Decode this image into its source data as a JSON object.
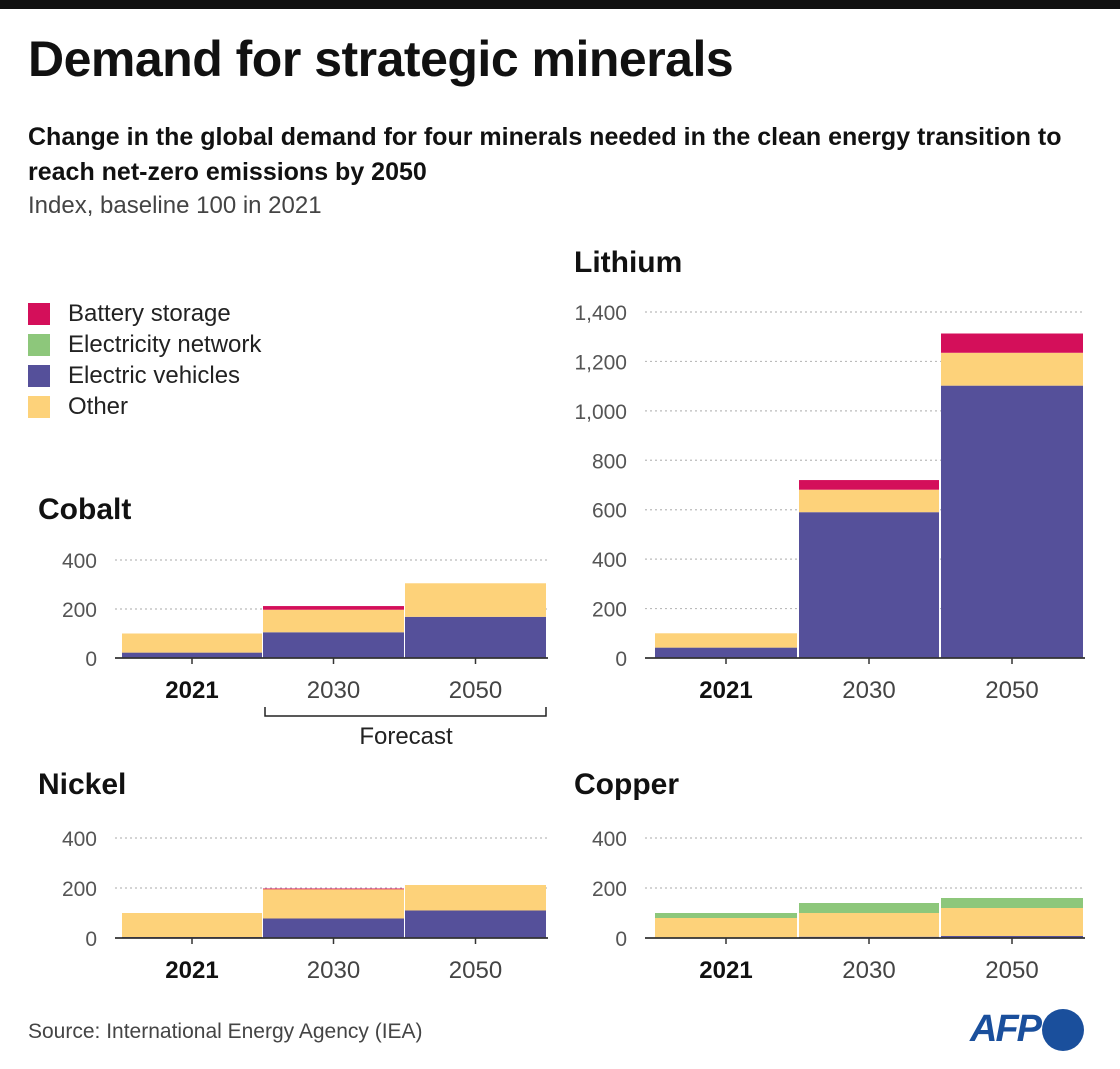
{
  "header": {
    "title": "Demand for strategic minerals",
    "subtitle": "Change in the global demand for four minerals needed in the clean energy transition to reach net-zero emissions by 2050",
    "unit": "Index, baseline 100 in 2021"
  },
  "legend": [
    {
      "label": "Battery storage",
      "color": "#d40f5a"
    },
    {
      "label": "Electricity network",
      "color": "#8dc77b"
    },
    {
      "label": "Electric vehicles",
      "color": "#55509a"
    },
    {
      "label": "Other",
      "color": "#fdd27a"
    }
  ],
  "forecast_label": "Forecast",
  "source": "Source: International Energy Agency (IEA)",
  "logo": "AFP",
  "chart_data": [
    {
      "type": "bar",
      "stacked": true,
      "title": "Cobalt",
      "categories": [
        "2021",
        "2030",
        "2050"
      ],
      "ylim": [
        0,
        400
      ],
      "yticks": [
        "0",
        "200",
        "400"
      ],
      "grid": true,
      "series": [
        {
          "name": "Electric vehicles",
          "values": [
            22,
            105,
            168
          ]
        },
        {
          "name": "Other",
          "values": [
            78,
            92,
            137
          ]
        },
        {
          "name": "Electricity network",
          "values": [
            0,
            0,
            0
          ]
        },
        {
          "name": "Battery storage",
          "values": [
            0,
            15,
            0
          ]
        }
      ]
    },
    {
      "type": "bar",
      "stacked": true,
      "title": "Lithium",
      "categories": [
        "2021",
        "2030",
        "2050"
      ],
      "ylim": [
        0,
        1400
      ],
      "yticks": [
        "0",
        "200",
        "400",
        "600",
        "800",
        "1,000",
        "1,200",
        "1,400"
      ],
      "grid": true,
      "series": [
        {
          "name": "Electric vehicles",
          "values": [
            42,
            590,
            1102
          ]
        },
        {
          "name": "Other",
          "values": [
            58,
            91,
            133
          ]
        },
        {
          "name": "Electricity network",
          "values": [
            0,
            0,
            0
          ]
        },
        {
          "name": "Battery storage",
          "values": [
            0,
            39,
            78
          ]
        }
      ]
    },
    {
      "type": "bar",
      "stacked": true,
      "title": "Nickel",
      "categories": [
        "2021",
        "2030",
        "2050"
      ],
      "ylim": [
        0,
        400
      ],
      "yticks": [
        "0",
        "200",
        "400"
      ],
      "grid": true,
      "series": [
        {
          "name": "Electric vehicles",
          "values": [
            4,
            78,
            110
          ]
        },
        {
          "name": "Other",
          "values": [
            96,
            118,
            102
          ]
        },
        {
          "name": "Electricity network",
          "values": [
            0,
            0,
            0
          ]
        },
        {
          "name": "Battery storage",
          "values": [
            0,
            2,
            0
          ]
        }
      ]
    },
    {
      "type": "bar",
      "stacked": true,
      "title": "Copper",
      "categories": [
        "2021",
        "2030",
        "2050"
      ],
      "ylim": [
        0,
        400
      ],
      "yticks": [
        "0",
        "200",
        "400"
      ],
      "grid": true,
      "series": [
        {
          "name": "Electric vehicles",
          "values": [
            0,
            5,
            8
          ]
        },
        {
          "name": "Other",
          "values": [
            80,
            95,
            112
          ]
        },
        {
          "name": "Electricity network",
          "values": [
            20,
            40,
            40
          ]
        },
        {
          "name": "Battery storage",
          "values": [
            0,
            0,
            0
          ]
        }
      ]
    }
  ]
}
